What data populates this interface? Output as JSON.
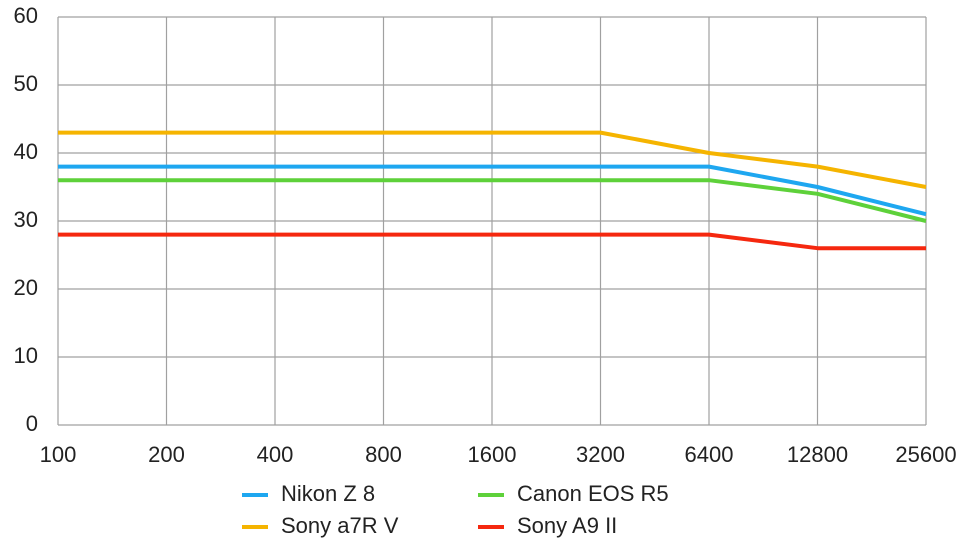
{
  "chart_data": {
    "type": "line",
    "categories": [
      "100",
      "200",
      "400",
      "800",
      "1600",
      "3200",
      "6400",
      "12800",
      "25600"
    ],
    "series": [
      {
        "name": "Nikon Z 8",
        "color": "#1ea7f0",
        "values": [
          38,
          38,
          38,
          38,
          38,
          38,
          38,
          35,
          31
        ]
      },
      {
        "name": "Sony a7R V",
        "color": "#f5b400",
        "values": [
          43,
          43,
          43,
          43,
          43,
          43,
          40,
          38,
          35
        ]
      },
      {
        "name": "Canon EOS R5",
        "color": "#5ed13a",
        "values": [
          36,
          36,
          36,
          36,
          36,
          36,
          36,
          34,
          30
        ]
      },
      {
        "name": "Sony A9 II",
        "color": "#f5280f",
        "values": [
          28,
          28,
          28,
          28,
          28,
          28,
          28,
          26,
          26
        ]
      }
    ],
    "ylim": [
      0,
      60
    ],
    "yticks": [
      0,
      10,
      20,
      30,
      40,
      50,
      60
    ],
    "grid": true,
    "legend": "bottom"
  }
}
